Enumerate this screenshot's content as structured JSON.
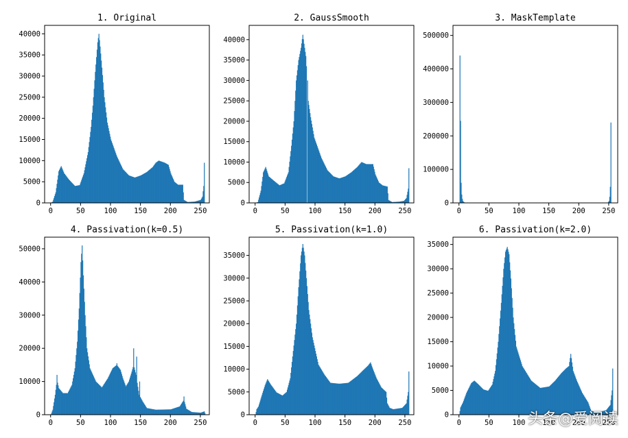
{
  "bar_color": "#1f77b4",
  "watermark": "头条@爱阅读",
  "chart_data": [
    {
      "type": "histogram",
      "title": "1. Original",
      "xlim": [
        -10,
        265
      ],
      "ylim": [
        0,
        42000
      ],
      "xticks": [
        0,
        50,
        100,
        150,
        200,
        250
      ],
      "yticks": [
        0,
        5000,
        10000,
        15000,
        20000,
        25000,
        30000,
        35000,
        40000
      ],
      "bin_width": 1,
      "profile": [
        [
          0,
          0
        ],
        [
          3,
          300
        ],
        [
          8,
          2500
        ],
        [
          13,
          7500
        ],
        [
          17,
          8700
        ],
        [
          22,
          7000
        ],
        [
          30,
          5500
        ],
        [
          40,
          4000
        ],
        [
          48,
          4200
        ],
        [
          55,
          7000
        ],
        [
          62,
          12000
        ],
        [
          67,
          18000
        ],
        [
          70,
          23000
        ],
        [
          74,
          31000
        ],
        [
          78,
          38000
        ],
        [
          80,
          40000
        ],
        [
          82,
          37000
        ],
        [
          85,
          32000
        ],
        [
          89,
          25000
        ],
        [
          94,
          19000
        ],
        [
          100,
          15000
        ],
        [
          110,
          11000
        ],
        [
          120,
          8000
        ],
        [
          130,
          6500
        ],
        [
          140,
          6000
        ],
        [
          150,
          6500
        ],
        [
          160,
          7300
        ],
        [
          170,
          8500
        ],
        [
          175,
          9500
        ],
        [
          180,
          10000
        ],
        [
          190,
          9500
        ],
        [
          196,
          9000
        ],
        [
          200,
          7000
        ],
        [
          206,
          5000
        ],
        [
          212,
          4300
        ],
        [
          220,
          4300
        ],
        [
          222,
          700
        ],
        [
          228,
          200
        ],
        [
          240,
          300
        ],
        [
          250,
          700
        ],
        [
          253,
          1500
        ],
        [
          255,
          4000
        ],
        [
          256,
          9500
        ],
        [
          257,
          0
        ]
      ]
    },
    {
      "type": "histogram",
      "title": "2. GaussSmooth",
      "xlim": [
        -10,
        265
      ],
      "ylim": [
        0,
        43500
      ],
      "xticks": [
        0,
        50,
        100,
        150,
        200,
        250
      ],
      "yticks": [
        0,
        5000,
        10000,
        15000,
        20000,
        25000,
        30000,
        35000,
        40000
      ],
      "bin_width": 1,
      "gaps": [
        86
      ],
      "spike": [
        [
          86,
          500
        ],
        [
          87,
          30000
        ]
      ],
      "profile": [
        [
          0,
          0
        ],
        [
          4,
          200
        ],
        [
          9,
          3000
        ],
        [
          13,
          7500
        ],
        [
          17,
          8800
        ],
        [
          22,
          6500
        ],
        [
          30,
          5500
        ],
        [
          40,
          4300
        ],
        [
          48,
          4800
        ],
        [
          55,
          7500
        ],
        [
          60,
          14000
        ],
        [
          64,
          20000
        ],
        [
          68,
          30000
        ],
        [
          72,
          35000
        ],
        [
          76,
          38000
        ],
        [
          79,
          41200
        ],
        [
          81,
          39000
        ],
        [
          84,
          36000
        ],
        [
          86,
          31000
        ],
        [
          88,
          25000
        ],
        [
          92,
          21000
        ],
        [
          98,
          16000
        ],
        [
          110,
          11000
        ],
        [
          120,
          8000
        ],
        [
          130,
          6500
        ],
        [
          140,
          6000
        ],
        [
          150,
          6500
        ],
        [
          160,
          7500
        ],
        [
          170,
          8800
        ],
        [
          177,
          10000
        ],
        [
          185,
          9500
        ],
        [
          196,
          9500
        ],
        [
          200,
          7000
        ],
        [
          206,
          5000
        ],
        [
          212,
          4300
        ],
        [
          220,
          4000
        ],
        [
          222,
          700
        ],
        [
          228,
          200
        ],
        [
          240,
          300
        ],
        [
          248,
          500
        ],
        [
          252,
          1200
        ],
        [
          255,
          3500
        ],
        [
          256,
          8500
        ],
        [
          257,
          0
        ]
      ]
    },
    {
      "type": "histogram",
      "title": "3. MaskTemplate",
      "xlim": [
        -10,
        265
      ],
      "ylim": [
        0,
        530000
      ],
      "xticks": [
        0,
        50,
        100,
        150,
        200,
        250
      ],
      "yticks": [
        0,
        100000,
        200000,
        300000,
        400000,
        500000
      ],
      "bin_width": 1,
      "profile": [
        [
          0,
          0
        ],
        [
          1,
          440000
        ],
        [
          2,
          245000
        ],
        [
          3,
          60000
        ],
        [
          4,
          25000
        ],
        [
          5,
          12000
        ],
        [
          6,
          6000
        ],
        [
          7,
          3000
        ],
        [
          9,
          800
        ],
        [
          12,
          0
        ],
        [
          248,
          0
        ],
        [
          250,
          6000
        ],
        [
          251,
          18000
        ],
        [
          252,
          48000
        ],
        [
          253,
          240000
        ],
        [
          254,
          0
        ]
      ]
    },
    {
      "type": "histogram",
      "title": "4. Passivation(k=0.5)",
      "xlim": [
        -10,
        265
      ],
      "ylim": [
        0,
        53500
      ],
      "xticks": [
        0,
        50,
        100,
        150,
        200,
        250
      ],
      "yticks": [
        0,
        10000,
        20000,
        30000,
        40000,
        50000
      ],
      "bin_width": 1,
      "profile": [
        [
          0,
          0
        ],
        [
          3,
          1500
        ],
        [
          7,
          6000
        ],
        [
          10,
          10500
        ],
        [
          13,
          8000
        ],
        [
          20,
          6500
        ],
        [
          28,
          6500
        ],
        [
          35,
          9000
        ],
        [
          40,
          14000
        ],
        [
          44,
          22000
        ],
        [
          47,
          32000
        ],
        [
          50,
          46000
        ],
        [
          52,
          51000
        ],
        [
          54,
          42000
        ],
        [
          57,
          30000
        ],
        [
          60,
          20000
        ],
        [
          65,
          14000
        ],
        [
          75,
          10000
        ],
        [
          85,
          8200
        ],
        [
          95,
          11000
        ],
        [
          103,
          14000
        ],
        [
          110,
          15000
        ],
        [
          116,
          13500
        ],
        [
          120,
          11000
        ],
        [
          125,
          8500
        ],
        [
          130,
          10000
        ],
        [
          135,
          13000
        ],
        [
          138,
          15000
        ],
        [
          142,
          12000
        ],
        [
          147,
          6000
        ],
        [
          153,
          4000
        ],
        [
          160,
          2000
        ],
        [
          175,
          1500
        ],
        [
          200,
          1600
        ],
        [
          215,
          2500
        ],
        [
          222,
          4500
        ],
        [
          226,
          1800
        ],
        [
          235,
          800
        ],
        [
          250,
          600
        ],
        [
          256,
          1000
        ],
        [
          258,
          0
        ]
      ],
      "spike": [
        [
          10,
          12000
        ],
        [
          110,
          15500
        ],
        [
          138,
          20000
        ],
        [
          143,
          17500
        ],
        [
          148,
          10000
        ],
        [
          222,
          5500
        ]
      ]
    },
    {
      "type": "histogram",
      "title": "5. Passivation(k=1.0)",
      "xlim": [
        -10,
        265
      ],
      "ylim": [
        0,
        39000
      ],
      "xticks": [
        0,
        50,
        100,
        150,
        200,
        250
      ],
      "yticks": [
        0,
        5000,
        10000,
        15000,
        20000,
        25000,
        30000,
        35000
      ],
      "bin_width": 1,
      "profile": [
        [
          0,
          0
        ],
        [
          2,
          1200
        ],
        [
          5,
          1800
        ],
        [
          10,
          4000
        ],
        [
          16,
          6500
        ],
        [
          20,
          7800
        ],
        [
          25,
          6700
        ],
        [
          35,
          4900
        ],
        [
          45,
          4200
        ],
        [
          52,
          5000
        ],
        [
          58,
          8000
        ],
        [
          63,
          14000
        ],
        [
          68,
          20000
        ],
        [
          72,
          28000
        ],
        [
          76,
          35000
        ],
        [
          79,
          37500
        ],
        [
          82,
          35000
        ],
        [
          85,
          30000
        ],
        [
          89,
          23000
        ],
        [
          95,
          17000
        ],
        [
          105,
          11000
        ],
        [
          115,
          8800
        ],
        [
          125,
          7000
        ],
        [
          140,
          6800
        ],
        [
          155,
          7000
        ],
        [
          170,
          8500
        ],
        [
          180,
          9800
        ],
        [
          188,
          10800
        ],
        [
          192,
          11500
        ],
        [
          196,
          10000
        ],
        [
          202,
          8000
        ],
        [
          210,
          6000
        ],
        [
          218,
          5000
        ],
        [
          220,
          2500
        ],
        [
          224,
          1500
        ],
        [
          230,
          1200
        ],
        [
          245,
          1500
        ],
        [
          252,
          2500
        ],
        [
          255,
          5000
        ],
        [
          256,
          9500
        ],
        [
          257,
          0
        ]
      ]
    },
    {
      "type": "histogram",
      "title": "6. Passivation(k=2.0)",
      "xlim": [
        -10,
        265
      ],
      "ylim": [
        0,
        36500
      ],
      "xticks": [
        0,
        50,
        100,
        150,
        200,
        250
      ],
      "yticks": [
        0,
        5000,
        10000,
        15000,
        20000,
        25000,
        30000,
        35000
      ],
      "bin_width": 1,
      "profile": [
        [
          0,
          0
        ],
        [
          2,
          1500
        ],
        [
          6,
          2500
        ],
        [
          12,
          4500
        ],
        [
          20,
          6500
        ],
        [
          25,
          7000
        ],
        [
          32,
          6200
        ],
        [
          40,
          5200
        ],
        [
          48,
          4900
        ],
        [
          55,
          6200
        ],
        [
          60,
          9000
        ],
        [
          65,
          15000
        ],
        [
          70,
          23000
        ],
        [
          74,
          30000
        ],
        [
          77,
          33500
        ],
        [
          80,
          34500
        ],
        [
          83,
          33000
        ],
        [
          86,
          28000
        ],
        [
          90,
          20000
        ],
        [
          95,
          14000
        ],
        [
          105,
          10000
        ],
        [
          120,
          7000
        ],
        [
          135,
          5500
        ],
        [
          150,
          5800
        ],
        [
          160,
          7000
        ],
        [
          170,
          8500
        ],
        [
          178,
          9500
        ],
        [
          183,
          10000
        ],
        [
          186,
          12500
        ],
        [
          190,
          9000
        ],
        [
          196,
          7000
        ],
        [
          205,
          4500
        ],
        [
          215,
          2500
        ],
        [
          220,
          800
        ],
        [
          230,
          500
        ],
        [
          245,
          900
        ],
        [
          252,
          2000
        ],
        [
          255,
          5000
        ],
        [
          256,
          9500
        ],
        [
          257,
          0
        ]
      ]
    }
  ]
}
